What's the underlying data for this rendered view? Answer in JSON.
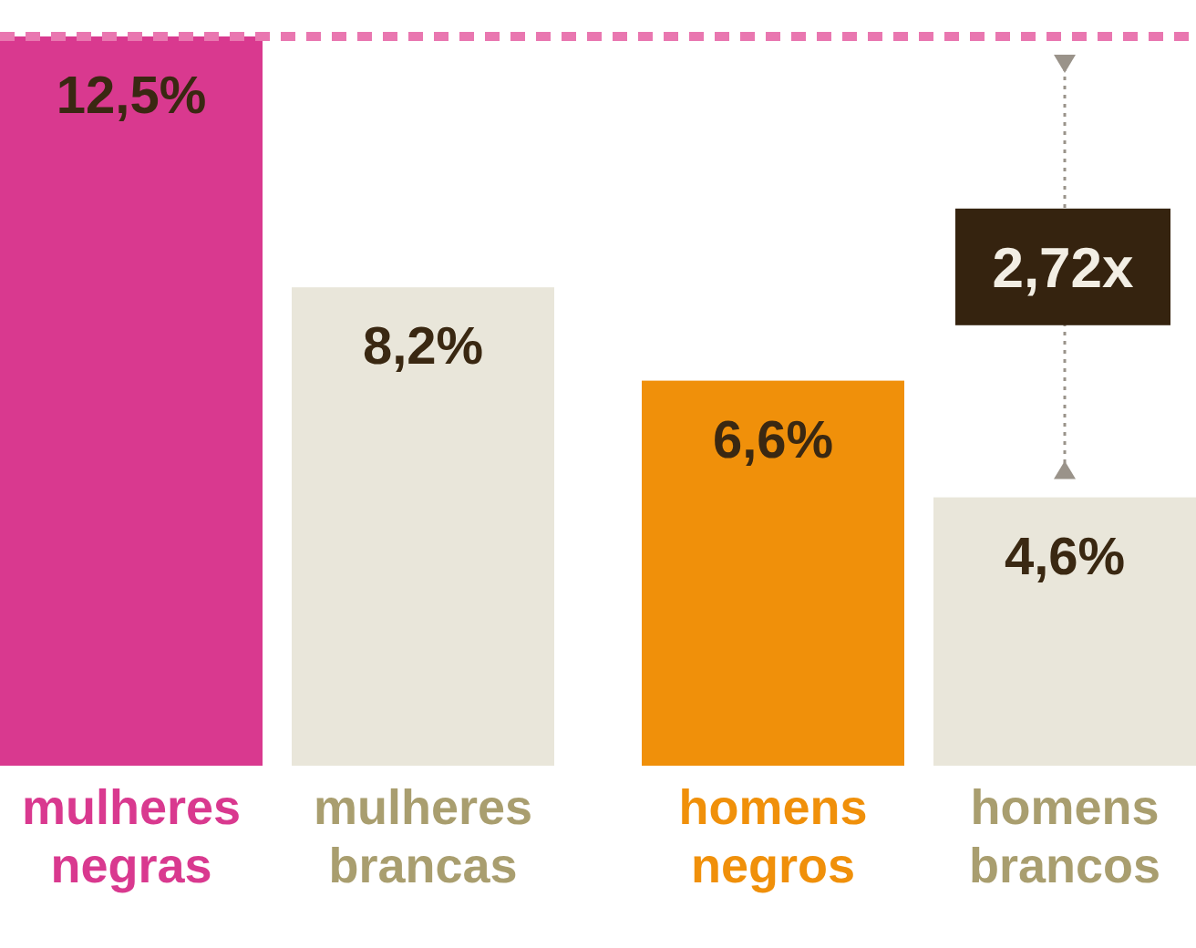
{
  "chart_data": {
    "type": "bar",
    "categories": [
      "mulheres negras",
      "mulheres brancas",
      "homens negros",
      "homens brancos"
    ],
    "values": [
      12.5,
      8.2,
      6.6,
      4.6
    ],
    "colors": [
      "#d9398f",
      "#e9e6da",
      "#f0900a",
      "#e9e6da"
    ],
    "value_labels": [
      "12,5%",
      "8,2%",
      "6,6%",
      "4,6%"
    ],
    "ref_lines": [
      {
        "axis": "y",
        "value": 12.5,
        "color": "#e977b0",
        "line_style": "dashed"
      }
    ],
    "annotations": [
      "2,72x"
    ],
    "legend": false
  }
}
